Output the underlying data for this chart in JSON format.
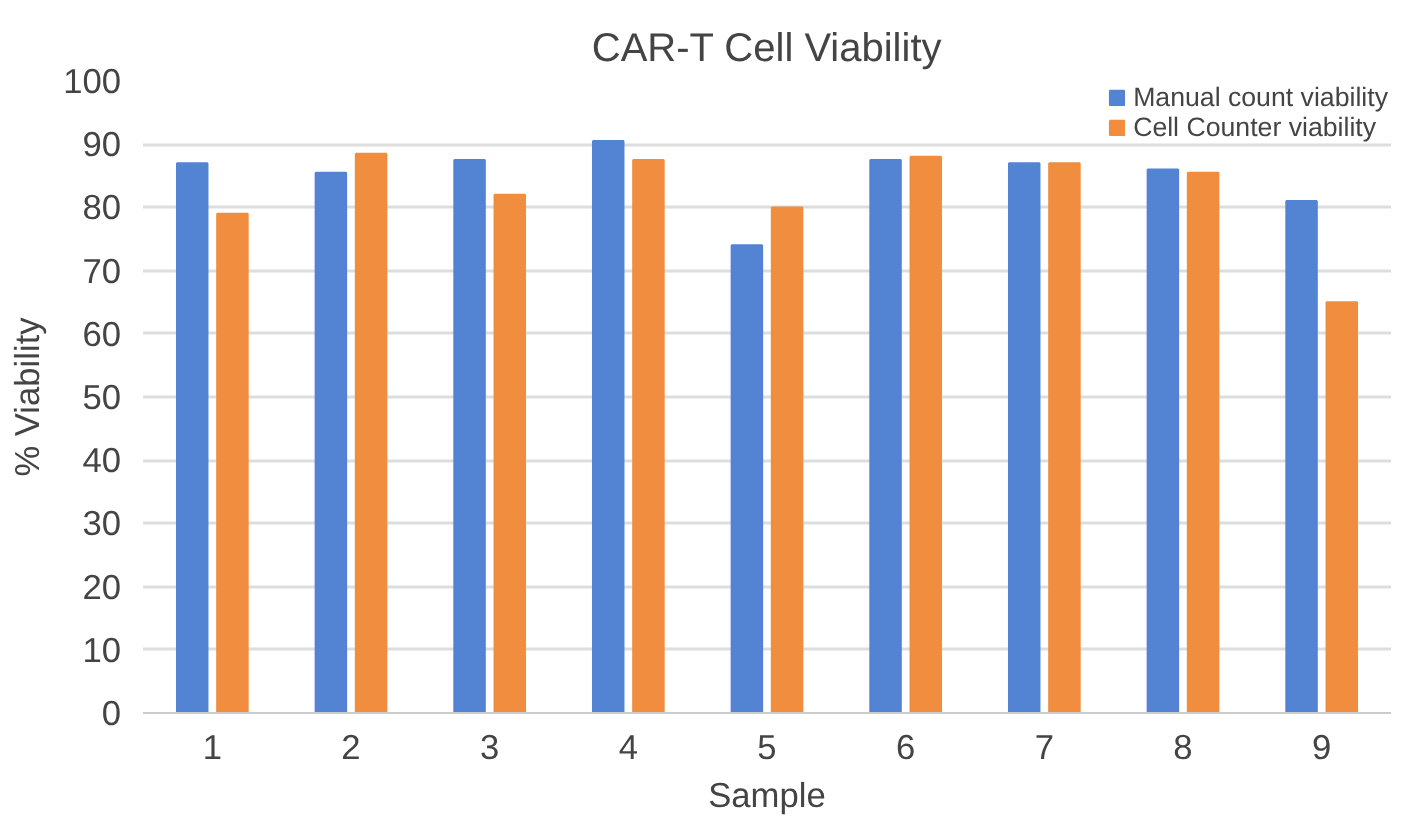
{
  "chart_data": {
    "type": "bar",
    "title": "CAR-T Cell Viability",
    "xlabel": "Sample",
    "ylabel": "% Viability",
    "categories": [
      "1",
      "2",
      "3",
      "4",
      "5",
      "6",
      "7",
      "8",
      "9"
    ],
    "series": [
      {
        "name": "Manual count viability",
        "color": "#5383d3",
        "values": [
          87,
          85.5,
          87.5,
          90.5,
          74,
          87.5,
          87,
          86,
          81
        ]
      },
      {
        "name": "Cell Counter viability",
        "color": "#f08d3f",
        "values": [
          79,
          88.5,
          82,
          87.5,
          80,
          88,
          87,
          85.5,
          65
        ]
      }
    ],
    "ylim": [
      0,
      100
    ],
    "yticks": [
      0,
      10,
      20,
      30,
      40,
      50,
      60,
      70,
      80,
      90,
      100
    ],
    "grid": "y",
    "legend": "top right"
  }
}
